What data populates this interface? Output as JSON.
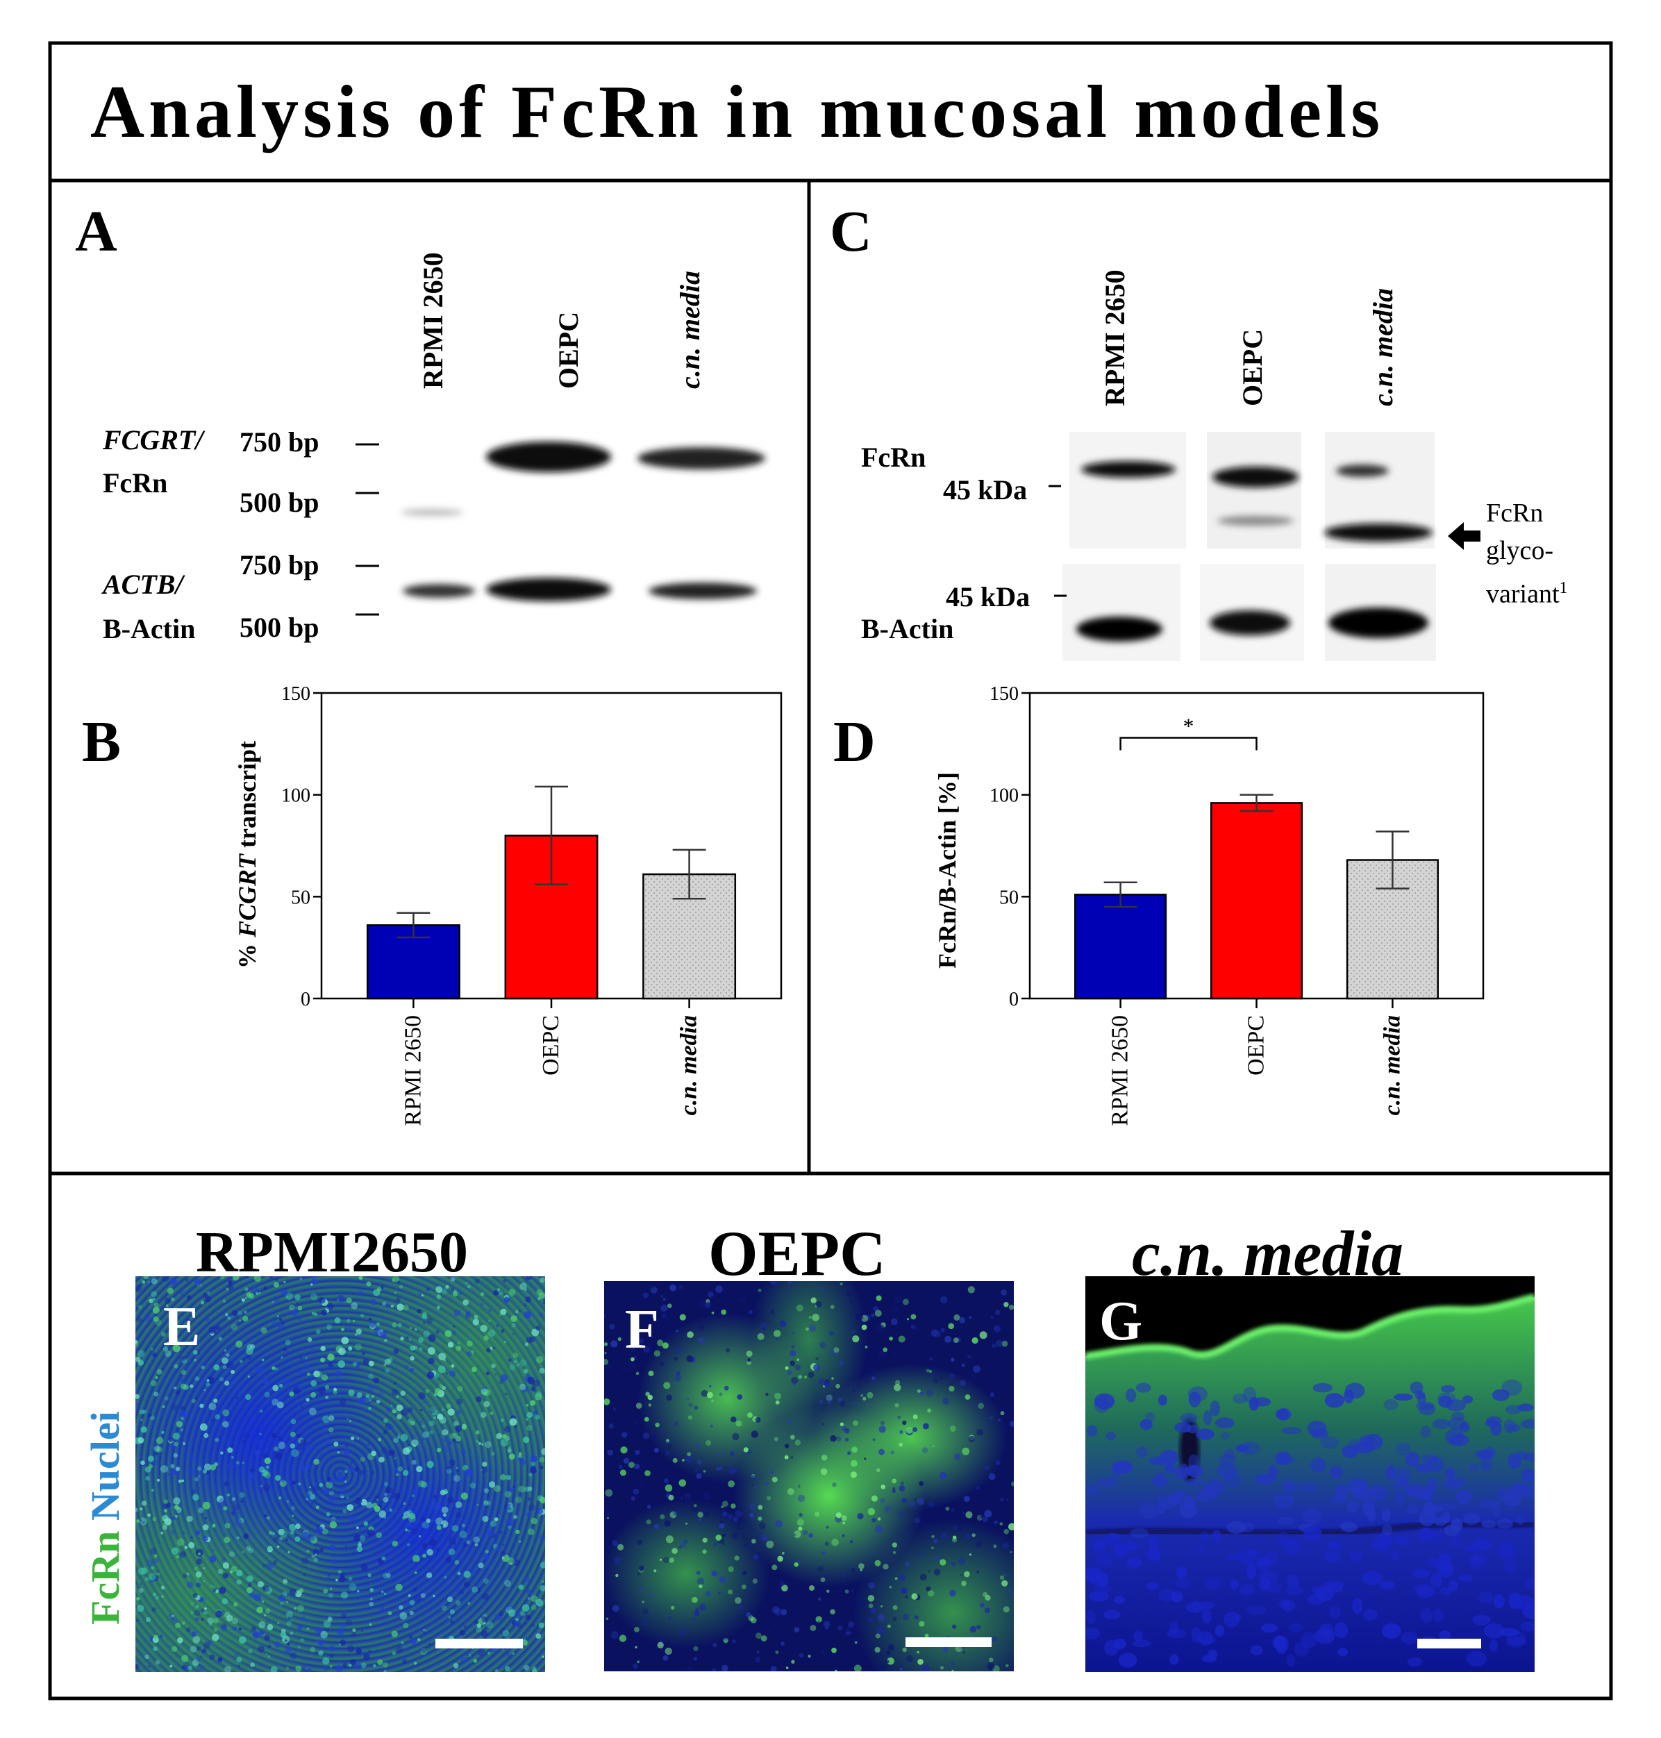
{
  "title": "Analysis of FcRn in mucosal models",
  "lanes": [
    "RPMI 2650",
    "OEPC",
    "c.n. media"
  ],
  "panels": {
    "a": {
      "letter": "A",
      "gene1": "FCGRT/",
      "protein1": "FcRn",
      "gene2": "ACTB/",
      "protein2": "B-Actin",
      "marker_750": "750 bp",
      "marker_500": "500 bp"
    },
    "b": {
      "letter": "B",
      "ylabel_prefix": "%",
      "ylabel_gene": "FCGRT",
      "ylabel_suffix": " transcript"
    },
    "c": {
      "letter": "C",
      "protein1": "FcRn",
      "protein2": "B-Actin",
      "marker": "45 kDa",
      "annot_line1": "FcRn",
      "annot_line2": "glyco-",
      "annot_line3": "variant",
      "annot_sup": "1"
    },
    "d": {
      "letter": "D",
      "ylabel": "FcRn/B-Actin [%]",
      "sig": "*"
    },
    "e": {
      "letter": "E",
      "title": "RPMI2650"
    },
    "f": {
      "letter": "F",
      "title": "OEPC"
    },
    "g": {
      "letter": "G",
      "title": "c.n. media"
    },
    "stain": {
      "fcrn": "FcRn",
      "nuclei": "Nuclei"
    }
  },
  "colors": {
    "rpmi": "#0000b4",
    "oepc": "#ff0000",
    "media": "#d4d4d4",
    "fcrn_green": "#3cb43c",
    "nuclei_blue": "#2a8ad4"
  },
  "chart_data": [
    {
      "type": "bar",
      "panel": "B",
      "categories": [
        "RPMI 2650",
        "OEPC",
        "c.n. media"
      ],
      "values": [
        36,
        80,
        61
      ],
      "errors": [
        6,
        24,
        12
      ],
      "ylabel": "% FCGRT transcript",
      "ylim": [
        0,
        150
      ],
      "yticks": [
        0,
        50,
        100,
        150
      ]
    },
    {
      "type": "bar",
      "panel": "D",
      "categories": [
        "RPMI 2650",
        "OEPC",
        "c.n. media"
      ],
      "values": [
        51,
        96,
        68
      ],
      "errors": [
        6,
        4,
        14
      ],
      "ylabel": "FcRn/B-Actin [%]",
      "ylim": [
        0,
        150
      ],
      "yticks": [
        0,
        50,
        100,
        150
      ],
      "significance": {
        "between": [
          "RPMI 2650",
          "OEPC"
        ],
        "label": "*"
      }
    }
  ]
}
